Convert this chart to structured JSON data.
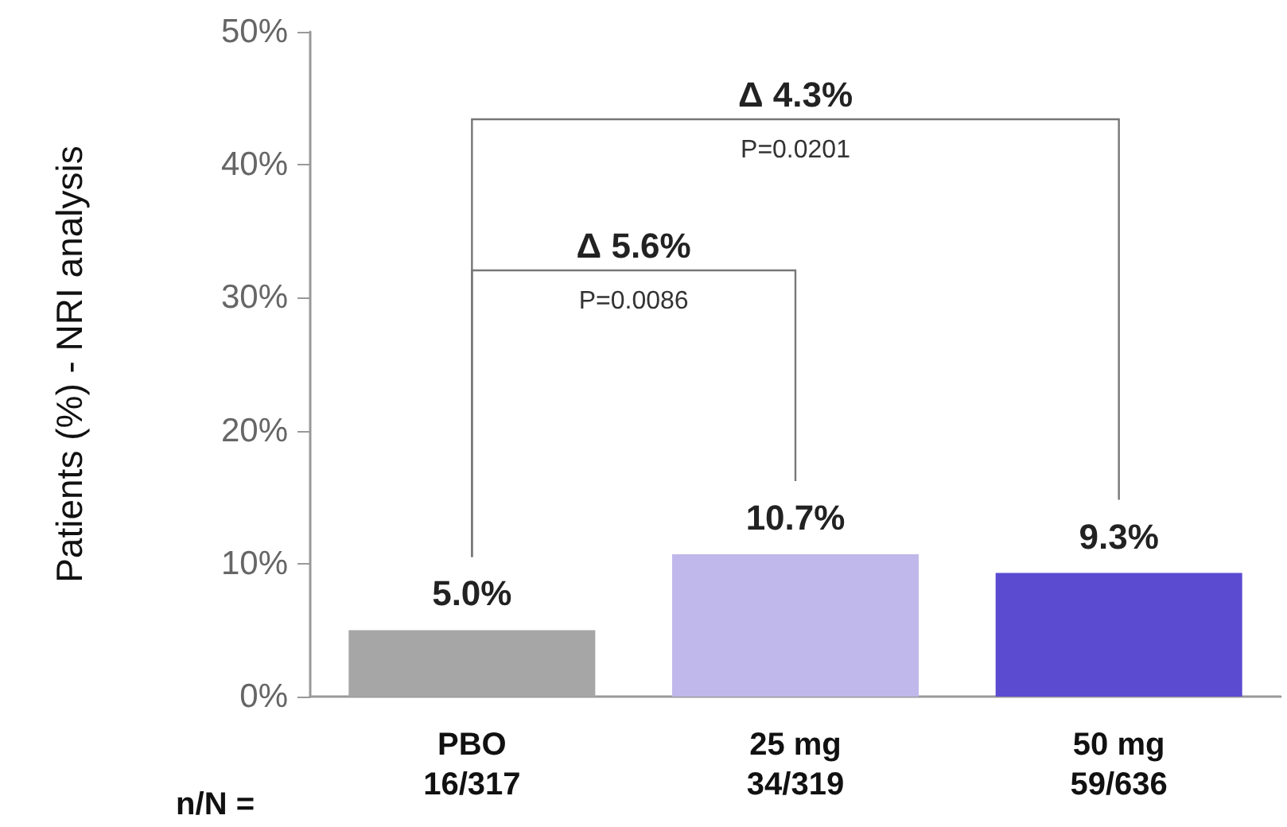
{
  "chart_data": {
    "type": "bar",
    "ylabel": "Patients (%) - NRI analysis",
    "categories": [
      "PBO\n16/317",
      "25 mg\n34/319",
      "50 mg\n59/636"
    ],
    "values": [
      5.0,
      10.7,
      9.3
    ],
    "colors": [
      "#a6a6a6",
      "#c0b8ea",
      "#5b4bd1"
    ],
    "value_labels": [
      "5.0%",
      "10.7%",
      "9.3%"
    ],
    "ylim": [
      0,
      50
    ],
    "yticks": [
      {
        "value": 0,
        "label": "0%"
      },
      {
        "value": 10,
        "label": "10%"
      },
      {
        "value": 20,
        "label": "20%"
      },
      {
        "value": 30,
        "label": "30%"
      },
      {
        "value": 40,
        "label": "40%"
      },
      {
        "value": 50,
        "label": "50%"
      }
    ],
    "grid": false,
    "annotations": [
      "Δ 5.6%",
      "P=0.0086",
      "Δ 4.3%",
      "P=0.0201",
      "n/N ="
    ]
  }
}
